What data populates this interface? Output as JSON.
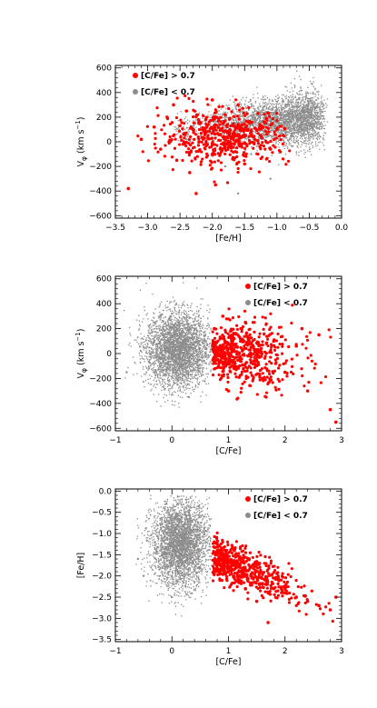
{
  "colors": {
    "red": "#ff0000",
    "gray": "#8c8c8c"
  },
  "chart_data": [
    {
      "type": "scatter",
      "xlabel": "[Fe/H]",
      "ylabel": "V_φ (km s⁻¹)",
      "ylabel_parts": {
        "main": "V",
        "sub": "φ",
        "unit": " (km s",
        "sup": "−1",
        "close": ")"
      },
      "xlim": [
        -3.5,
        0.0
      ],
      "ylim": [
        -620,
        620
      ],
      "xticks": [
        -3.5,
        -3.0,
        -2.5,
        -2.0,
        -1.5,
        -1.0,
        -0.5,
        0.0
      ],
      "xtick_labels": [
        "−3.5",
        "−3.0",
        "−2.5",
        "−2.0",
        "−1.5",
        "−1.0",
        "−0.5",
        "0.0"
      ],
      "yticks": [
        -600,
        -400,
        -200,
        0,
        200,
        400,
        600
      ],
      "ytick_labels": [
        "−600",
        "−400",
        "−200",
        "0",
        "200",
        "400",
        "600"
      ],
      "legend_position": "top-left",
      "series": [
        {
          "name": "[C/Fe] > 0.7",
          "color": "#ff0000",
          "points": [
            [
              -3.1,
              20
            ],
            [
              -2.9,
              120
            ],
            [
              -2.8,
              -60
            ],
            [
              -2.7,
              200
            ],
            [
              -2.6,
              50
            ],
            [
              -2.55,
              -150
            ],
            [
              -2.5,
              130
            ],
            [
              -2.45,
              -20
            ],
            [
              -2.4,
              250
            ],
            [
              -2.35,
              -250
            ],
            [
              -2.3,
              100
            ],
            [
              -2.2,
              0
            ],
            [
              -2.1,
              180
            ],
            [
              -2.0,
              -100
            ],
            [
              -1.9,
              60
            ],
            [
              -1.8,
              220
            ],
            [
              -1.7,
              -40
            ],
            [
              -1.6,
              140
            ],
            [
              -1.5,
              -180
            ],
            [
              -1.4,
              80
            ],
            [
              -1.3,
              10
            ],
            [
              -1.2,
              160
            ],
            [
              -1.1,
              -60
            ],
            [
              -1.0,
              100
            ],
            [
              -2.25,
              -420
            ],
            [
              -1.95,
              -350
            ],
            [
              -3.3,
              -380
            ],
            [
              -2.6,
              300
            ],
            [
              -2.0,
              340
            ],
            [
              -1.6,
              300
            ]
          ]
        },
        {
          "name": "[C/Fe] < 0.7",
          "color": "#8c8c8c",
          "points": [
            [
              -1.5,
              150
            ],
            [
              -1.0,
              180
            ],
            [
              -0.7,
              190
            ],
            [
              -0.5,
              200
            ],
            [
              -0.3,
              210
            ],
            [
              -1.2,
              100
            ],
            [
              -2.0,
              120
            ],
            [
              -0.9,
              60
            ],
            [
              -1.4,
              -100
            ],
            [
              -1.8,
              -200
            ],
            [
              -1.1,
              -300
            ],
            [
              -0.6,
              280
            ],
            [
              -2.4,
              20
            ],
            [
              -1.6,
              -420
            ],
            [
              -0.4,
              160
            ]
          ]
        }
      ]
    },
    {
      "type": "scatter",
      "xlabel": "[C/Fe]",
      "ylabel": "V_φ (km s⁻¹)",
      "ylabel_parts": {
        "main": "V",
        "sub": "φ",
        "unit": " (km s",
        "sup": "−1",
        "close": ")"
      },
      "xlim": [
        -1,
        3
      ],
      "ylim": [
        -620,
        620
      ],
      "xticks": [
        -1,
        0,
        1,
        2,
        3
      ],
      "xtick_labels": [
        "−1",
        "0",
        "1",
        "2",
        "3"
      ],
      "yticks": [
        -600,
        -400,
        -200,
        0,
        200,
        400,
        600
      ],
      "ytick_labels": [
        "−600",
        "−400",
        "−200",
        "0",
        "200",
        "400",
        "600"
      ],
      "legend_position": "top-right",
      "series": [
        {
          "name": "[C/Fe] > 0.7",
          "color": "#ff0000",
          "points": [
            [
              0.75,
              200
            ],
            [
              0.85,
              50
            ],
            [
              0.95,
              -100
            ],
            [
              1.1,
              120
            ],
            [
              1.2,
              -50
            ],
            [
              1.4,
              80
            ],
            [
              1.6,
              -200
            ],
            [
              1.8,
              100
            ],
            [
              2.0,
              -150
            ],
            [
              2.2,
              60
            ],
            [
              2.4,
              -300
            ],
            [
              2.6,
              150
            ],
            [
              2.8,
              -450
            ],
            [
              1.3,
              250
            ],
            [
              1.0,
              -300
            ],
            [
              0.9,
              300
            ],
            [
              2.9,
              -550
            ],
            [
              2.3,
              200
            ]
          ]
        },
        {
          "name": "[C/Fe] < 0.7",
          "color": "#8c8c8c",
          "points": [
            [
              0.0,
              0
            ],
            [
              0.2,
              100
            ],
            [
              -0.2,
              -100
            ],
            [
              0.4,
              200
            ],
            [
              -0.3,
              250
            ],
            [
              0.1,
              -250
            ],
            [
              0.5,
              -50
            ],
            [
              -0.5,
              50
            ],
            [
              0.3,
              -350
            ],
            [
              0.0,
              320
            ],
            [
              -0.8,
              -150
            ],
            [
              0.6,
              100
            ]
          ]
        }
      ]
    },
    {
      "type": "scatter",
      "xlabel": "[C/Fe]",
      "ylabel": "[Fe/H]",
      "xlim": [
        -1,
        3
      ],
      "ylim": [
        -3.55,
        0.05
      ],
      "xticks": [
        -1,
        0,
        1,
        2,
        3
      ],
      "xtick_labels": [
        "−1",
        "0",
        "1",
        "2",
        "3"
      ],
      "yticks": [
        -3.5,
        -3.0,
        -2.5,
        -2.0,
        -1.5,
        -1.0,
        -0.5,
        0.0
      ],
      "ytick_labels": [
        "−3.5",
        "−3.0",
        "−2.5",
        "−2.0",
        "−1.5",
        "−1.0",
        "−0.5",
        "0.0"
      ],
      "legend_position": "top-right",
      "series": [
        {
          "name": "[C/Fe] > 0.7",
          "color": "#ff0000",
          "points": [
            [
              0.75,
              -1.2
            ],
            [
              0.8,
              -1.5
            ],
            [
              0.9,
              -1.7
            ],
            [
              1.0,
              -1.8
            ],
            [
              1.2,
              -1.9
            ],
            [
              1.4,
              -2.0
            ],
            [
              1.6,
              -2.2
            ],
            [
              1.8,
              -2.3
            ],
            [
              2.0,
              -2.4
            ],
            [
              2.2,
              -2.5
            ],
            [
              2.4,
              -2.6
            ],
            [
              2.6,
              -2.7
            ],
            [
              2.8,
              -2.8
            ],
            [
              1.1,
              -1.4
            ],
            [
              1.3,
              -2.3
            ],
            [
              1.5,
              -2.6
            ],
            [
              1.7,
              -3.1
            ],
            [
              2.9,
              -2.5
            ],
            [
              0.85,
              -2.1
            ],
            [
              1.25,
              -1.6
            ]
          ]
        },
        {
          "name": "[C/Fe] < 0.7",
          "color": "#8c8c8c",
          "points": [
            [
              0.0,
              -1.5
            ],
            [
              0.2,
              -1.0
            ],
            [
              0.3,
              -0.5
            ],
            [
              0.1,
              -0.3
            ],
            [
              -0.3,
              -1.2
            ],
            [
              -0.5,
              -2.0
            ],
            [
              0.5,
              -1.8
            ],
            [
              0.0,
              -2.5
            ],
            [
              -0.2,
              -0.8
            ],
            [
              0.4,
              -1.3
            ],
            [
              0.25,
              -0.2
            ],
            [
              -0.6,
              -1.6
            ]
          ]
        }
      ]
    }
  ]
}
